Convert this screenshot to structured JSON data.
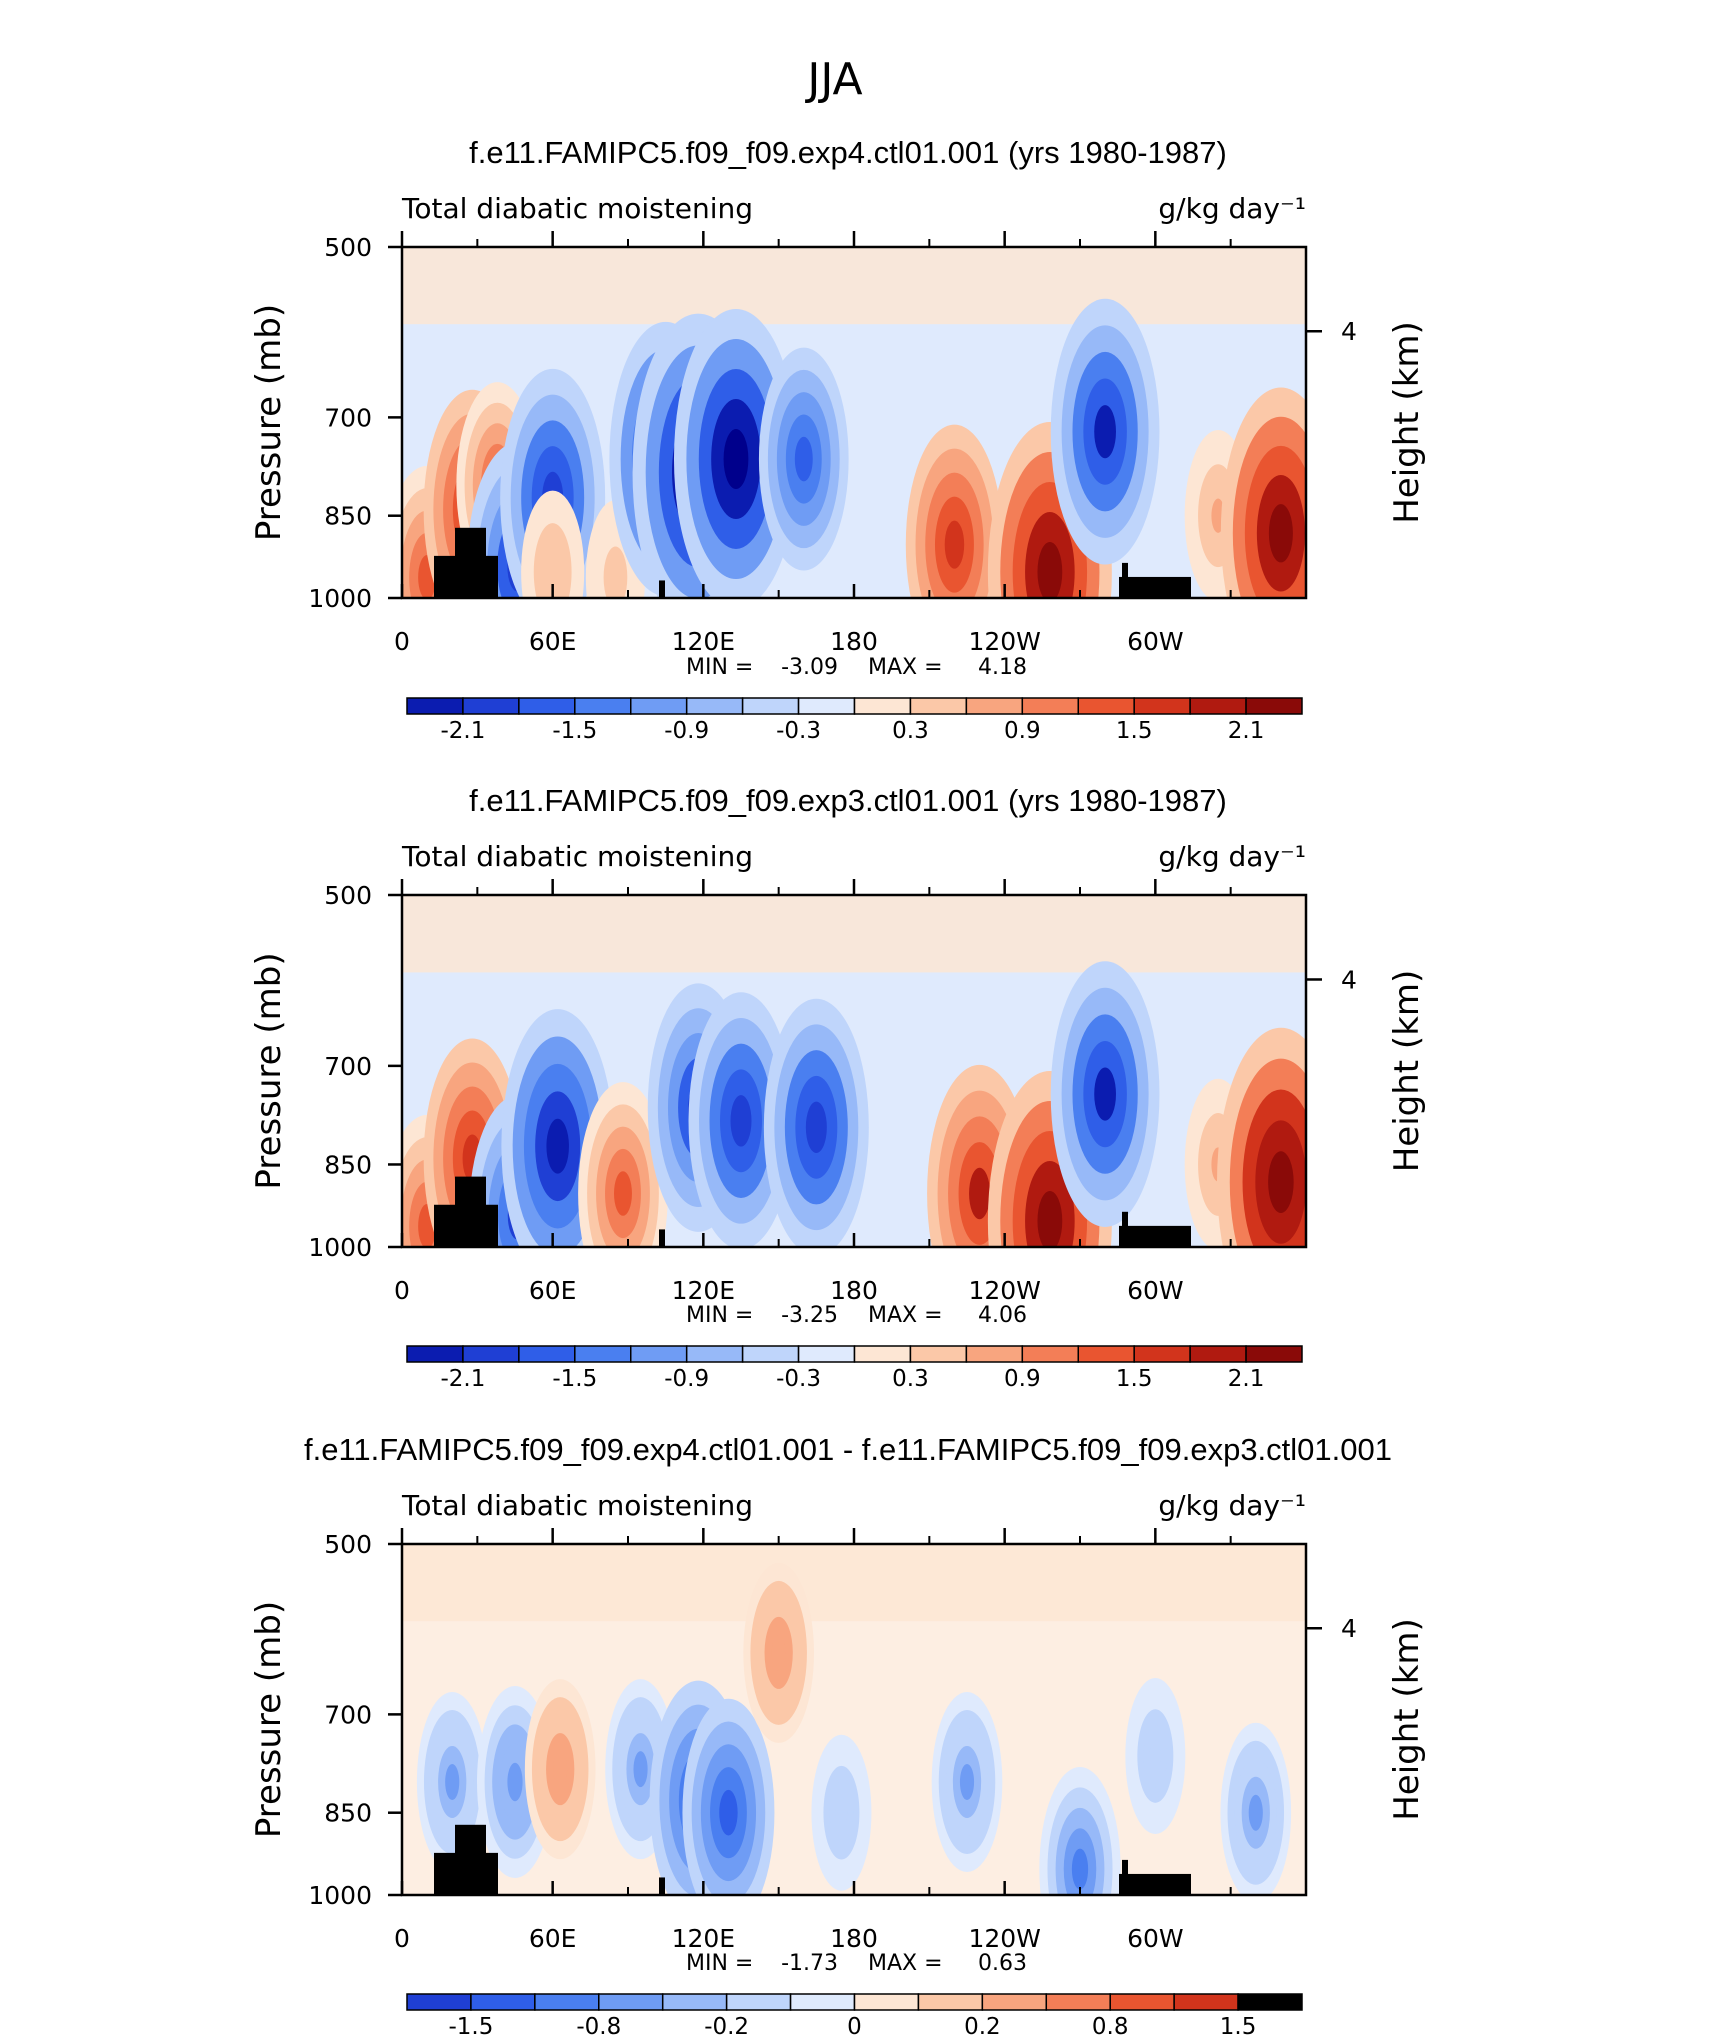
{
  "figure": {
    "title": "JJA"
  },
  "chart_data": [
    {
      "type": "heatmap",
      "title": "f.e11.FAMIPC5.f09_f09.exp4.ctl01.001 (yrs 1980-1987)",
      "left_string": "Total diabatic moistening",
      "right_string": "g/kg day⁻¹",
      "ylabel": "Pressure (mb)",
      "ylabel_right": "Height (km)",
      "x_ticks": [
        "0",
        "60E",
        "120E",
        "180",
        "120W",
        "60W"
      ],
      "y_ticks": [
        "500",
        "700",
        "850",
        "1000"
      ],
      "y_right_ticks": [
        "4"
      ],
      "ylim": [
        1000,
        500
      ],
      "min_label": "MIN =",
      "min_value": "-3.09",
      "max_label": "MAX =",
      "max_value": "4.18",
      "colorbar_labels": [
        "-2.1",
        "-1.5",
        "-0.9",
        "-0.3",
        "0.3",
        "0.9",
        "1.5",
        "2.1"
      ],
      "colorbar_levels": [
        -2.1,
        -1.8,
        -1.5,
        -1.2,
        -0.9,
        -0.6,
        -0.3,
        0,
        0.3,
        0.6,
        0.9,
        1.2,
        1.5,
        1.8,
        2.1
      ],
      "features": [
        {
          "lon": 10,
          "p": 960,
          "value": 1.2
        },
        {
          "lon": 28,
          "p": 840,
          "value": 1.4
        },
        {
          "lon": 38,
          "p": 800,
          "value": 1.0
        },
        {
          "lon": 46,
          "p": 940,
          "value": -1.5
        },
        {
          "lon": 60,
          "p": 820,
          "value": -1.6
        },
        {
          "lon": 60,
          "p": 950,
          "value": 0.5
        },
        {
          "lon": 85,
          "p": 960,
          "value": 0.4
        },
        {
          "lon": 105,
          "p": 760,
          "value": -1.8
        },
        {
          "lon": 118,
          "p": 780,
          "value": -2.3
        },
        {
          "lon": 133,
          "p": 760,
          "value": -2.1
        },
        {
          "lon": 160,
          "p": 760,
          "value": -1.2
        },
        {
          "lon": 220,
          "p": 900,
          "value": 1.4
        },
        {
          "lon": 258,
          "p": 950,
          "value": 2.1
        },
        {
          "lon": 280,
          "p": 720,
          "value": -1.7
        },
        {
          "lon": 325,
          "p": 850,
          "value": 0.6
        },
        {
          "lon": 350,
          "p": 880,
          "value": 2.0
        }
      ]
    },
    {
      "type": "heatmap",
      "title": "f.e11.FAMIPC5.f09_f09.exp3.ctl01.001 (yrs 1980-1987)",
      "left_string": "Total diabatic moistening",
      "right_string": "g/kg day⁻¹",
      "ylabel": "Pressure (mb)",
      "ylabel_right": "Height (km)",
      "x_ticks": [
        "0",
        "60E",
        "120E",
        "180",
        "120W",
        "60W"
      ],
      "y_ticks": [
        "500",
        "700",
        "850",
        "1000"
      ],
      "y_right_ticks": [
        "4"
      ],
      "ylim": [
        1000,
        500
      ],
      "min_label": "MIN =",
      "min_value": "-3.25",
      "max_label": "MAX =",
      "max_value": "4.06",
      "colorbar_labels": [
        "-2.1",
        "-1.5",
        "-0.9",
        "-0.3",
        "0.3",
        "0.9",
        "1.5",
        "2.1"
      ],
      "colorbar_levels": [
        -2.1,
        -1.8,
        -1.5,
        -1.2,
        -0.9,
        -0.6,
        -0.3,
        0,
        0.3,
        0.6,
        0.9,
        1.2,
        1.5,
        1.8,
        2.1
      ],
      "features": [
        {
          "lon": 10,
          "p": 960,
          "value": 1.2
        },
        {
          "lon": 28,
          "p": 840,
          "value": 1.4
        },
        {
          "lon": 46,
          "p": 940,
          "value": -1.4
        },
        {
          "lon": 62,
          "p": 820,
          "value": -1.8
        },
        {
          "lon": 88,
          "p": 900,
          "value": 1.2
        },
        {
          "lon": 118,
          "p": 760,
          "value": -1.5
        },
        {
          "lon": 135,
          "p": 780,
          "value": -1.6
        },
        {
          "lon": 165,
          "p": 790,
          "value": -1.6
        },
        {
          "lon": 230,
          "p": 900,
          "value": 1.6
        },
        {
          "lon": 258,
          "p": 950,
          "value": 2.1
        },
        {
          "lon": 280,
          "p": 740,
          "value": -1.7
        },
        {
          "lon": 325,
          "p": 850,
          "value": 0.6
        },
        {
          "lon": 350,
          "p": 880,
          "value": 2.2
        }
      ]
    },
    {
      "type": "heatmap",
      "title": "f.e11.FAMIPC5.f09_f09.exp4.ctl01.001 - f.e11.FAMIPC5.f09_f09.exp3.ctl01.001",
      "left_string": "Total diabatic moistening",
      "right_string": "g/kg day⁻¹",
      "ylabel": "Pressure (mb)",
      "ylabel_right": "Height (km)",
      "x_ticks": [
        "0",
        "60E",
        "120E",
        "180",
        "120W",
        "60W"
      ],
      "y_ticks": [
        "500",
        "700",
        "850",
        "1000"
      ],
      "y_right_ticks": [
        "4"
      ],
      "ylim": [
        1000,
        500
      ],
      "min_label": "MIN =",
      "min_value": "-1.73",
      "max_label": "MAX =",
      "max_value": "0.63",
      "colorbar_labels": [
        "-1.5",
        "-0.8",
        "-0.2",
        "0",
        "0.2",
        "0.8",
        "1.5"
      ],
      "colorbar_levels": [
        -1.5,
        -1.0,
        -0.8,
        -0.5,
        -0.2,
        -0.1,
        0,
        0.1,
        0.2,
        0.5,
        0.8,
        1.0,
        1.5
      ],
      "features": [
        {
          "lon": 20,
          "p": 800,
          "value": -0.5
        },
        {
          "lon": 45,
          "p": 800,
          "value": -0.6
        },
        {
          "lon": 63,
          "p": 780,
          "value": 0.5
        },
        {
          "lon": 95,
          "p": 780,
          "value": -0.5
        },
        {
          "lon": 118,
          "p": 830,
          "value": -1.0
        },
        {
          "lon": 130,
          "p": 850,
          "value": -0.9
        },
        {
          "lon": 150,
          "p": 620,
          "value": 0.5
        },
        {
          "lon": 175,
          "p": 850,
          "value": -0.3
        },
        {
          "lon": 225,
          "p": 800,
          "value": -0.5
        },
        {
          "lon": 270,
          "p": 950,
          "value": -0.7
        },
        {
          "lon": 300,
          "p": 760,
          "value": -0.3
        },
        {
          "lon": 340,
          "p": 850,
          "value": -0.5
        }
      ]
    }
  ]
}
